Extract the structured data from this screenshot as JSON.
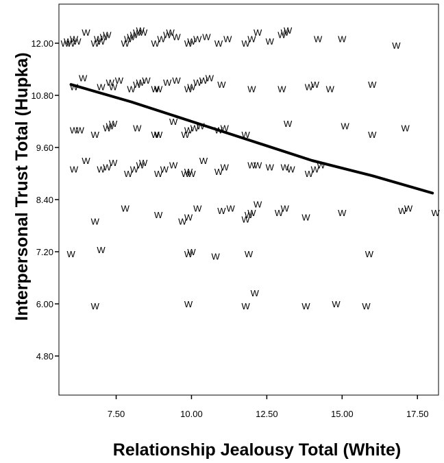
{
  "chart_data": {
    "type": "scatter",
    "title": "",
    "xlabel": "Relationship Jealousy Total (White)",
    "ylabel": "Interpersonal Trust Total (Hupka)",
    "xlim": [
      5.6,
      18.2
    ],
    "ylim": [
      3.9,
      12.9
    ],
    "x_ticks": [
      7.5,
      10.0,
      12.5,
      15.0,
      17.5
    ],
    "x_tick_labels": [
      "7.50",
      "10.00",
      "12.50",
      "15.00",
      "17.50"
    ],
    "y_ticks": [
      4.8,
      6.0,
      7.2,
      8.4,
      9.6,
      10.8,
      12.0
    ],
    "y_tick_labels": [
      "4.80",
      "6.00",
      "7.20",
      "8.40",
      "9.60",
      "10.80",
      "12.00"
    ],
    "grid": false,
    "legend": "none",
    "marker_symbol": "W",
    "fit_line": {
      "type": "loess",
      "x": [
        6.0,
        8.0,
        10.0,
        12.0,
        14.0,
        16.0,
        18.0
      ],
      "y": [
        11.05,
        10.65,
        10.2,
        9.75,
        9.3,
        8.95,
        8.55
      ]
    },
    "points": [
      [
        5.8,
        12.0
      ],
      [
        5.9,
        12.05
      ],
      [
        6.0,
        12.0
      ],
      [
        6.1,
        12.1
      ],
      [
        6.2,
        12.05
      ],
      [
        6.5,
        12.25
      ],
      [
        6.8,
        12.0
      ],
      [
        6.9,
        12.1
      ],
      [
        7.0,
        12.05
      ],
      [
        7.1,
        12.15
      ],
      [
        7.2,
        12.2
      ],
      [
        7.8,
        12.0
      ],
      [
        7.9,
        12.1
      ],
      [
        8.0,
        12.15
      ],
      [
        8.1,
        12.2
      ],
      [
        8.2,
        12.25
      ],
      [
        8.3,
        12.3
      ],
      [
        8.4,
        12.25
      ],
      [
        8.8,
        12.0
      ],
      [
        9.0,
        12.1
      ],
      [
        9.2,
        12.2
      ],
      [
        9.3,
        12.25
      ],
      [
        9.5,
        12.15
      ],
      [
        9.9,
        12.0
      ],
      [
        10.0,
        12.05
      ],
      [
        10.2,
        12.1
      ],
      [
        10.5,
        12.15
      ],
      [
        10.9,
        12.0
      ],
      [
        11.2,
        12.1
      ],
      [
        11.8,
        12.0
      ],
      [
        12.0,
        12.1
      ],
      [
        12.2,
        12.25
      ],
      [
        12.6,
        12.05
      ],
      [
        13.0,
        12.2
      ],
      [
        13.1,
        12.25
      ],
      [
        13.2,
        12.3
      ],
      [
        14.2,
        12.1
      ],
      [
        15.0,
        12.1
      ],
      [
        16.8,
        11.95
      ],
      [
        6.1,
        11.0
      ],
      [
        6.4,
        11.2
      ],
      [
        7.0,
        11.0
      ],
      [
        7.3,
        11.1
      ],
      [
        7.4,
        11.0
      ],
      [
        7.6,
        11.15
      ],
      [
        8.0,
        10.95
      ],
      [
        8.2,
        11.05
      ],
      [
        8.3,
        11.1
      ],
      [
        8.5,
        11.15
      ],
      [
        8.8,
        10.95
      ],
      [
        8.9,
        10.95
      ],
      [
        9.2,
        11.1
      ],
      [
        9.5,
        11.15
      ],
      [
        9.9,
        10.95
      ],
      [
        10.0,
        11.0
      ],
      [
        10.2,
        11.1
      ],
      [
        10.4,
        11.15
      ],
      [
        10.6,
        11.2
      ],
      [
        11.0,
        11.05
      ],
      [
        12.0,
        10.95
      ],
      [
        13.0,
        10.95
      ],
      [
        13.9,
        11.0
      ],
      [
        14.1,
        11.05
      ],
      [
        14.6,
        10.95
      ],
      [
        16.0,
        11.05
      ],
      [
        6.1,
        10.0
      ],
      [
        6.3,
        10.0
      ],
      [
        6.8,
        9.9
      ],
      [
        7.2,
        10.05
      ],
      [
        7.3,
        10.1
      ],
      [
        7.4,
        10.15
      ],
      [
        8.2,
        10.05
      ],
      [
        8.8,
        9.9
      ],
      [
        8.9,
        9.9
      ],
      [
        9.4,
        10.2
      ],
      [
        9.8,
        9.9
      ],
      [
        9.9,
        10.0
      ],
      [
        10.1,
        10.05
      ],
      [
        10.3,
        10.1
      ],
      [
        10.9,
        10.0
      ],
      [
        11.1,
        10.05
      ],
      [
        11.8,
        9.9
      ],
      [
        13.2,
        10.15
      ],
      [
        15.1,
        10.1
      ],
      [
        16.0,
        9.9
      ],
      [
        17.1,
        10.05
      ],
      [
        6.1,
        9.1
      ],
      [
        6.5,
        9.3
      ],
      [
        7.0,
        9.1
      ],
      [
        7.2,
        9.15
      ],
      [
        7.4,
        9.25
      ],
      [
        7.9,
        9.0
      ],
      [
        8.1,
        9.1
      ],
      [
        8.3,
        9.2
      ],
      [
        8.4,
        9.25
      ],
      [
        8.9,
        9.0
      ],
      [
        9.1,
        9.1
      ],
      [
        9.4,
        9.2
      ],
      [
        9.8,
        9.0
      ],
      [
        9.9,
        9.05
      ],
      [
        10.0,
        9.0
      ],
      [
        10.4,
        9.3
      ],
      [
        10.9,
        9.05
      ],
      [
        11.1,
        9.15
      ],
      [
        12.0,
        9.2
      ],
      [
        12.2,
        9.2
      ],
      [
        12.6,
        9.15
      ],
      [
        13.1,
        9.15
      ],
      [
        13.3,
        9.1
      ],
      [
        13.9,
        9.0
      ],
      [
        14.1,
        9.1
      ],
      [
        14.3,
        9.2
      ],
      [
        6.8,
        7.9
      ],
      [
        7.8,
        8.2
      ],
      [
        8.9,
        8.05
      ],
      [
        9.7,
        7.9
      ],
      [
        9.9,
        8.0
      ],
      [
        10.2,
        8.2
      ],
      [
        11.0,
        8.15
      ],
      [
        11.3,
        8.2
      ],
      [
        11.8,
        7.95
      ],
      [
        11.9,
        8.05
      ],
      [
        12.0,
        8.1
      ],
      [
        12.2,
        8.3
      ],
      [
        12.9,
        8.1
      ],
      [
        13.1,
        8.2
      ],
      [
        13.8,
        8.0
      ],
      [
        15.0,
        8.1
      ],
      [
        17.0,
        8.15
      ],
      [
        17.2,
        8.2
      ],
      [
        18.1,
        8.1
      ],
      [
        6.0,
        7.15
      ],
      [
        7.0,
        7.25
      ],
      [
        9.9,
        7.15
      ],
      [
        10.0,
        7.2
      ],
      [
        10.8,
        7.1
      ],
      [
        11.9,
        7.15
      ],
      [
        15.9,
        7.15
      ],
      [
        6.8,
        5.95
      ],
      [
        9.9,
        6.0
      ],
      [
        11.8,
        5.95
      ],
      [
        12.1,
        6.25
      ],
      [
        13.8,
        5.95
      ],
      [
        14.8,
        6.0
      ],
      [
        15.8,
        5.95
      ]
    ]
  }
}
